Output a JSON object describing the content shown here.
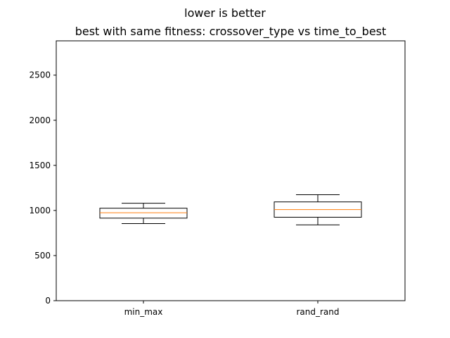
{
  "chart_data": {
    "type": "boxplot",
    "suptitle": "lower is better",
    "title": "best with same fitness: crossover_type vs time_to_best",
    "xlabel": "",
    "ylabel": "",
    "ylim": [
      0,
      2880
    ],
    "yticks": [
      0,
      500,
      1000,
      1500,
      2000,
      2500
    ],
    "grid": false,
    "categories": [
      "min_max",
      "rand_rand"
    ],
    "boxes": [
      {
        "category": "min_max",
        "whisker_low": 855,
        "q1": 915,
        "median": 975,
        "q3": 1025,
        "whisker_high": 1080
      },
      {
        "category": "rand_rand",
        "whisker_low": 840,
        "q1": 925,
        "median": 1010,
        "q3": 1095,
        "whisker_high": 1175
      }
    ],
    "colors": {
      "box": "#000000",
      "median": "#ff7f0e"
    }
  }
}
